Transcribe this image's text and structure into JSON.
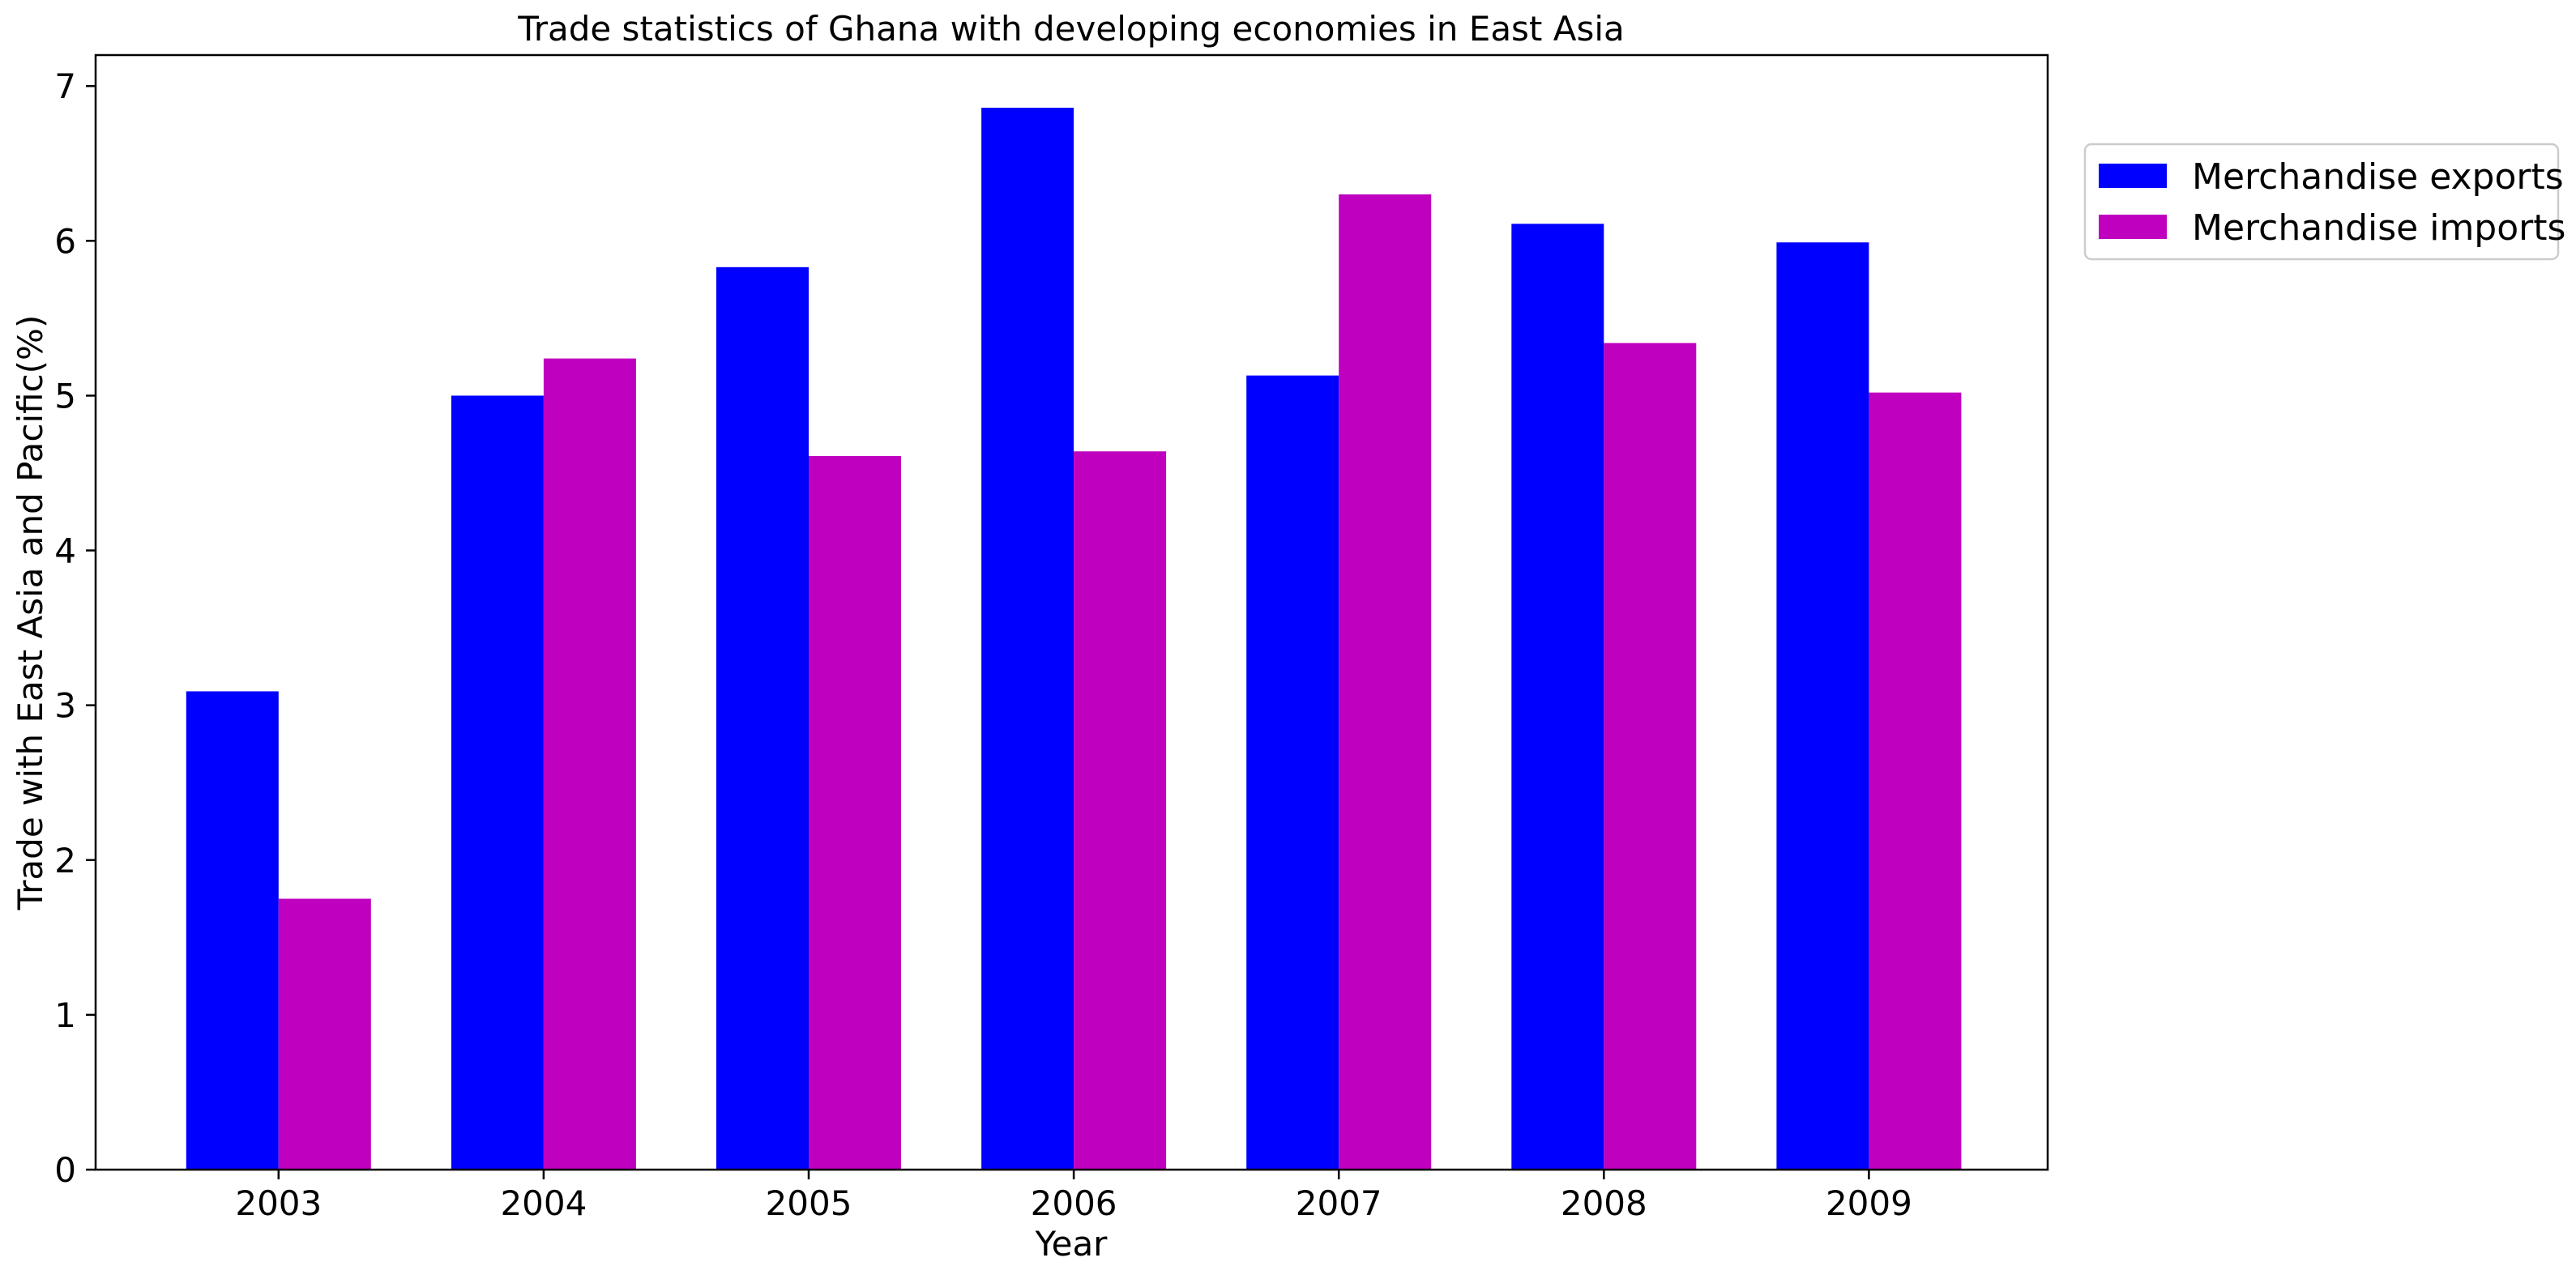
{
  "chart_data": {
    "type": "bar",
    "title": "Trade statistics of Ghana with developing economies in East Asia",
    "xlabel": "Year",
    "ylabel": "Trade with East Asia and Pacific(%)",
    "categories": [
      "2003",
      "2004",
      "2005",
      "2006",
      "2007",
      "2008",
      "2009"
    ],
    "series": [
      {
        "name": "Merchandise exports",
        "color": "#0000ff",
        "values": [
          3.09,
          5.0,
          5.83,
          6.86,
          5.13,
          6.11,
          5.99
        ]
      },
      {
        "name": "Merchandise imports",
        "color": "#bf00bf",
        "values": [
          1.75,
          5.24,
          4.61,
          4.64,
          6.3,
          5.34,
          5.02
        ]
      }
    ],
    "ylim": [
      0,
      7.2
    ],
    "yticks": [
      0,
      1,
      2,
      3,
      4,
      5,
      6,
      7
    ],
    "grid": false,
    "legend": "outside-top-right"
  }
}
